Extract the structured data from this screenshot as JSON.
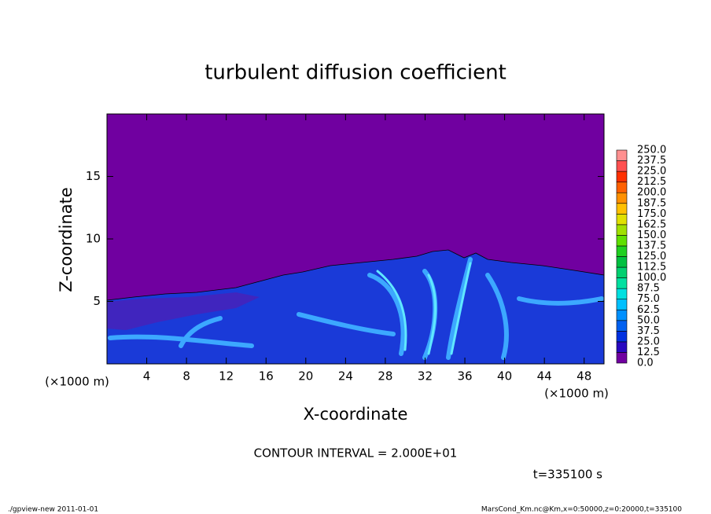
{
  "chart_data": {
    "type": "contour",
    "title": "turbulent diffusion coefficient",
    "xlabel": "X-coordinate",
    "ylabel": "Z-coordinate",
    "x_unit": "(×1000 m)",
    "xlim": [
      0,
      50
    ],
    "xticks": [
      4,
      8,
      12,
      16,
      20,
      24,
      28,
      32,
      36,
      40,
      44,
      48
    ],
    "ylim": [
      0,
      20
    ],
    "yticks": [
      5,
      10,
      15
    ],
    "colorbar": {
      "levels": [
        {
          "value": 0,
          "label": "0.0"
        },
        {
          "value": 12.5,
          "label": "12.5"
        },
        {
          "value": 25,
          "label": "25.0"
        },
        {
          "value": 37.5,
          "label": "37.5"
        },
        {
          "value": 50,
          "label": "50.0"
        },
        {
          "value": 62.5,
          "label": "62.5"
        },
        {
          "value": 75,
          "label": "75.0"
        },
        {
          "value": 87.5,
          "label": "87.5"
        },
        {
          "value": 100,
          "label": "100.0"
        },
        {
          "value": 112.5,
          "label": "112.5"
        },
        {
          "value": 125,
          "label": "125.0"
        },
        {
          "value": 137.5,
          "label": "137.5"
        },
        {
          "value": 150,
          "label": "150.0"
        },
        {
          "value": 162.5,
          "label": "162.5"
        },
        {
          "value": 175,
          "label": "175.0"
        },
        {
          "value": 187.5,
          "label": "187.5"
        },
        {
          "value": 200,
          "label": "200.0"
        },
        {
          "value": 212.5,
          "label": "212.5"
        },
        {
          "value": 225,
          "label": "225.0"
        },
        {
          "value": 237.5,
          "label": "237.5"
        },
        {
          "value": 250,
          "label": "250.0"
        }
      ],
      "colors": [
        "#7000a0",
        "#2808c0",
        "#0030e0",
        "#0060f0",
        "#0090ff",
        "#00c0ff",
        "#00e0e0",
        "#00e0a0",
        "#00d070",
        "#00c040",
        "#20d020",
        "#60e000",
        "#a0e000",
        "#e0e000",
        "#ffc000",
        "#ff9000",
        "#ff6000",
        "#ff3000",
        "#ff5050",
        "#ff9090"
      ]
    },
    "contour_interval": "CONTOUR INTERVAL = 2.000E+01",
    "time_label": "t=335100 s",
    "footer_left": "./gpview-new  2011-01-01",
    "footer_right": "MarsCond_Km.nc@Km,x=0:50000,z=0:20000,t=335100"
  }
}
